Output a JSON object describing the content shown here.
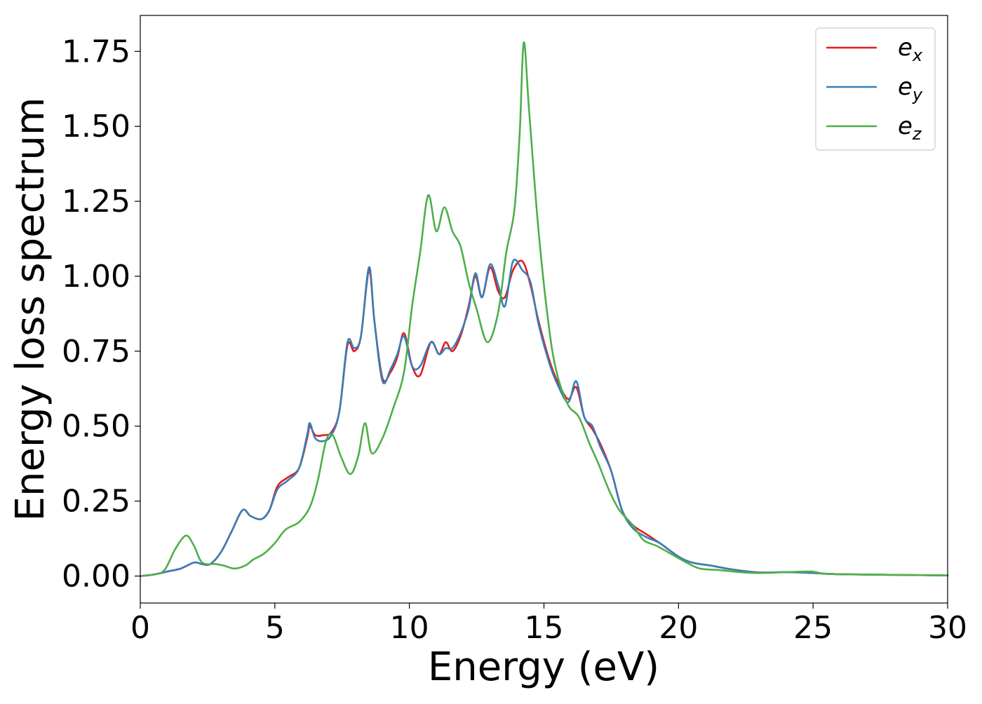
{
  "chart_data": {
    "type": "line",
    "xlabel": "Energy (eV)",
    "ylabel": "Energy loss spectrum",
    "xlim": [
      0,
      30
    ],
    "ylim": [
      -0.09,
      1.87
    ],
    "xticks": [
      "0",
      "5",
      "10",
      "15",
      "20",
      "25",
      "30"
    ],
    "xtick_values": [
      0,
      5,
      10,
      15,
      20,
      25,
      30
    ],
    "yticks": [
      "0.00",
      "0.25",
      "0.50",
      "0.75",
      "1.00",
      "1.25",
      "1.50",
      "1.75"
    ],
    "ytick_values": [
      0,
      0.25,
      0.5,
      0.75,
      1.0,
      1.25,
      1.5,
      1.75
    ],
    "grid": false,
    "legend_position": "top-right",
    "series": [
      {
        "name": "e_x",
        "base": "e",
        "sub": "x",
        "color": "#e41a1c",
        "points": [
          [
            0,
            0
          ],
          [
            0.5,
            0.005
          ],
          [
            1,
            0.015
          ],
          [
            1.5,
            0.025
          ],
          [
            2,
            0.045
          ],
          [
            2.3,
            0.04
          ],
          [
            2.6,
            0.04
          ],
          [
            3,
            0.08
          ],
          [
            3.4,
            0.15
          ],
          [
            3.8,
            0.22
          ],
          [
            4.1,
            0.2
          ],
          [
            4.5,
            0.19
          ],
          [
            4.8,
            0.22
          ],
          [
            5.1,
            0.3
          ],
          [
            5.5,
            0.33
          ],
          [
            5.9,
            0.36
          ],
          [
            6.2,
            0.46
          ],
          [
            6.3,
            0.5
          ],
          [
            6.5,
            0.47
          ],
          [
            6.8,
            0.47
          ],
          [
            7.1,
            0.48
          ],
          [
            7.4,
            0.55
          ],
          [
            7.7,
            0.77
          ],
          [
            7.95,
            0.75
          ],
          [
            8.2,
            0.8
          ],
          [
            8.5,
            1.02
          ],
          [
            8.7,
            0.85
          ],
          [
            9.0,
            0.66
          ],
          [
            9.3,
            0.68
          ],
          [
            9.55,
            0.73
          ],
          [
            9.8,
            0.81
          ],
          [
            10.1,
            0.7
          ],
          [
            10.4,
            0.67
          ],
          [
            10.8,
            0.78
          ],
          [
            11.1,
            0.74
          ],
          [
            11.35,
            0.78
          ],
          [
            11.6,
            0.75
          ],
          [
            11.9,
            0.8
          ],
          [
            12.2,
            0.9
          ],
          [
            12.45,
            1.0
          ],
          [
            12.7,
            0.93
          ],
          [
            13.0,
            1.03
          ],
          [
            13.3,
            0.95
          ],
          [
            13.55,
            0.93
          ],
          [
            13.85,
            1.02
          ],
          [
            14.2,
            1.05
          ],
          [
            14.5,
            0.97
          ],
          [
            14.8,
            0.85
          ],
          [
            15.2,
            0.72
          ],
          [
            15.5,
            0.65
          ],
          [
            15.9,
            0.59
          ],
          [
            16.2,
            0.63
          ],
          [
            16.5,
            0.53
          ],
          [
            16.8,
            0.49
          ],
          [
            17.1,
            0.44
          ],
          [
            17.5,
            0.35
          ],
          [
            17.9,
            0.22
          ],
          [
            18.3,
            0.17
          ],
          [
            18.8,
            0.14
          ],
          [
            19.3,
            0.11
          ],
          [
            20,
            0.065
          ],
          [
            20.5,
            0.045
          ],
          [
            21.2,
            0.035
          ],
          [
            22,
            0.022
          ],
          [
            23,
            0.012
          ],
          [
            24,
            0.013
          ],
          [
            25,
            0.01
          ],
          [
            26,
            0.006
          ],
          [
            28,
            0.004
          ],
          [
            30,
            0.002
          ]
        ]
      },
      {
        "name": "e_y",
        "base": "e",
        "sub": "y",
        "color": "#377eb8",
        "points": [
          [
            0,
            0
          ],
          [
            0.5,
            0.005
          ],
          [
            1,
            0.015
          ],
          [
            1.5,
            0.025
          ],
          [
            2,
            0.045
          ],
          [
            2.3,
            0.04
          ],
          [
            2.6,
            0.04
          ],
          [
            3,
            0.08
          ],
          [
            3.4,
            0.15
          ],
          [
            3.8,
            0.22
          ],
          [
            4.1,
            0.2
          ],
          [
            4.5,
            0.19
          ],
          [
            4.8,
            0.22
          ],
          [
            5.1,
            0.29
          ],
          [
            5.5,
            0.32
          ],
          [
            5.9,
            0.36
          ],
          [
            6.2,
            0.47
          ],
          [
            6.3,
            0.51
          ],
          [
            6.5,
            0.46
          ],
          [
            6.8,
            0.45
          ],
          [
            7.1,
            0.47
          ],
          [
            7.4,
            0.55
          ],
          [
            7.7,
            0.78
          ],
          [
            7.95,
            0.76
          ],
          [
            8.2,
            0.8
          ],
          [
            8.5,
            1.03
          ],
          [
            8.7,
            0.85
          ],
          [
            9.0,
            0.65
          ],
          [
            9.3,
            0.69
          ],
          [
            9.55,
            0.74
          ],
          [
            9.8,
            0.8
          ],
          [
            10.1,
            0.7
          ],
          [
            10.4,
            0.7
          ],
          [
            10.8,
            0.78
          ],
          [
            11.1,
            0.74
          ],
          [
            11.35,
            0.76
          ],
          [
            11.6,
            0.76
          ],
          [
            11.9,
            0.81
          ],
          [
            12.2,
            0.89
          ],
          [
            12.45,
            1.01
          ],
          [
            12.7,
            0.93
          ],
          [
            13.0,
            1.04
          ],
          [
            13.3,
            0.97
          ],
          [
            13.55,
            0.9
          ],
          [
            13.85,
            1.05
          ],
          [
            14.2,
            1.02
          ],
          [
            14.5,
            0.98
          ],
          [
            14.8,
            0.84
          ],
          [
            15.2,
            0.71
          ],
          [
            15.5,
            0.64
          ],
          [
            15.9,
            0.58
          ],
          [
            16.2,
            0.65
          ],
          [
            16.5,
            0.53
          ],
          [
            16.8,
            0.5
          ],
          [
            17.1,
            0.43
          ],
          [
            17.5,
            0.35
          ],
          [
            17.9,
            0.22
          ],
          [
            18.3,
            0.16
          ],
          [
            18.8,
            0.13
          ],
          [
            19.3,
            0.11
          ],
          [
            20,
            0.065
          ],
          [
            20.5,
            0.045
          ],
          [
            21.2,
            0.035
          ],
          [
            22,
            0.022
          ],
          [
            23,
            0.012
          ],
          [
            24,
            0.013
          ],
          [
            25,
            0.01
          ],
          [
            26,
            0.006
          ],
          [
            28,
            0.004
          ],
          [
            30,
            0.002
          ]
        ]
      },
      {
        "name": "e_z",
        "base": "e",
        "sub": "z",
        "color": "#4daf4a",
        "points": [
          [
            0,
            0
          ],
          [
            0.5,
            0.005
          ],
          [
            0.9,
            0.02
          ],
          [
            1.3,
            0.09
          ],
          [
            1.7,
            0.135
          ],
          [
            2.0,
            0.1
          ],
          [
            2.3,
            0.045
          ],
          [
            2.8,
            0.04
          ],
          [
            3.1,
            0.035
          ],
          [
            3.5,
            0.025
          ],
          [
            3.9,
            0.035
          ],
          [
            4.2,
            0.055
          ],
          [
            4.6,
            0.075
          ],
          [
            5.0,
            0.11
          ],
          [
            5.4,
            0.155
          ],
          [
            5.9,
            0.18
          ],
          [
            6.3,
            0.23
          ],
          [
            6.6,
            0.32
          ],
          [
            6.9,
            0.45
          ],
          [
            7.15,
            0.47
          ],
          [
            7.45,
            0.4
          ],
          [
            7.8,
            0.34
          ],
          [
            8.1,
            0.4
          ],
          [
            8.35,
            0.51
          ],
          [
            8.6,
            0.41
          ],
          [
            9.0,
            0.46
          ],
          [
            9.4,
            0.56
          ],
          [
            9.8,
            0.68
          ],
          [
            10.1,
            0.9
          ],
          [
            10.4,
            1.08
          ],
          [
            10.7,
            1.27
          ],
          [
            11.0,
            1.15
          ],
          [
            11.3,
            1.23
          ],
          [
            11.6,
            1.15
          ],
          [
            11.9,
            1.1
          ],
          [
            12.2,
            0.98
          ],
          [
            12.5,
            0.89
          ],
          [
            12.9,
            0.78
          ],
          [
            13.3,
            0.88
          ],
          [
            13.6,
            1.08
          ],
          [
            13.9,
            1.22
          ],
          [
            14.1,
            1.48
          ],
          [
            14.25,
            1.78
          ],
          [
            14.45,
            1.55
          ],
          [
            14.8,
            1.15
          ],
          [
            15.2,
            0.82
          ],
          [
            15.5,
            0.67
          ],
          [
            15.9,
            0.57
          ],
          [
            16.3,
            0.53
          ],
          [
            16.7,
            0.44
          ],
          [
            17.0,
            0.38
          ],
          [
            17.4,
            0.29
          ],
          [
            17.8,
            0.22
          ],
          [
            18.3,
            0.17
          ],
          [
            18.7,
            0.12
          ],
          [
            19.2,
            0.1
          ],
          [
            19.8,
            0.07
          ],
          [
            20.3,
            0.045
          ],
          [
            20.8,
            0.025
          ],
          [
            21.5,
            0.02
          ],
          [
            22.3,
            0.013
          ],
          [
            23,
            0.01
          ],
          [
            24,
            0.013
          ],
          [
            24.9,
            0.015
          ],
          [
            25.4,
            0.008
          ],
          [
            26,
            0.006
          ],
          [
            28,
            0.004
          ],
          [
            30,
            0.002
          ]
        ]
      }
    ]
  }
}
